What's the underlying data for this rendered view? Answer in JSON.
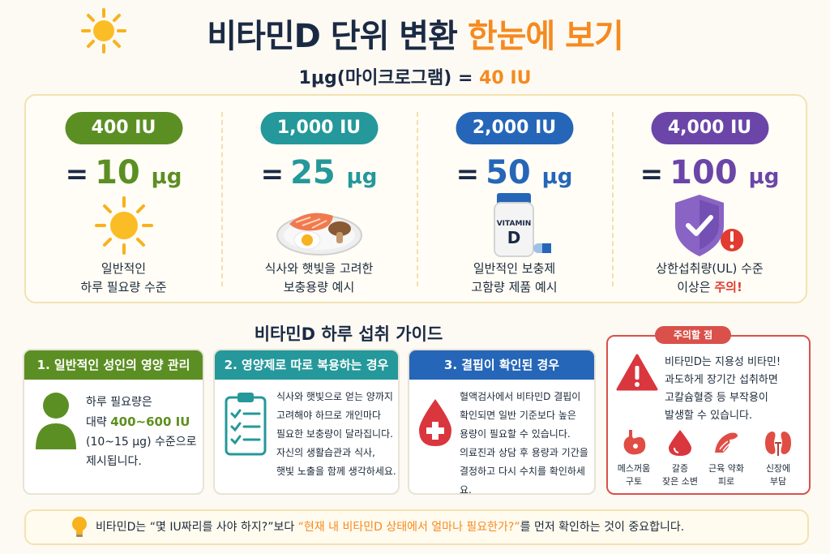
{
  "header": {
    "title_main": "비타민D 단위 변환",
    "title_accent": "한눈에 보기",
    "subtitle_main": "1μg(마이크로그램) =",
    "subtitle_accent": "40 IU"
  },
  "conversions": [
    {
      "iu": "400 IU",
      "eq": "=",
      "num": "10",
      "unit": "μg",
      "desc1": "일반적인",
      "desc2": "하루 필요량 수준",
      "desc2_warn": "",
      "color": "#5c8f23",
      "icon": "sun-icon"
    },
    {
      "iu": "1,000 IU",
      "eq": "=",
      "num": "25",
      "unit": "μg",
      "desc1": "식사와 햇빛을 고려한",
      "desc2": "보충용량 예시",
      "desc2_warn": "",
      "color": "#24989a",
      "icon": "salmon-egg-plate-icon"
    },
    {
      "iu": "2,000 IU",
      "eq": "=",
      "num": "50",
      "unit": "μg",
      "desc1": "일반적인 보충제",
      "desc2": "고함량 제품 예시",
      "desc2_warn": "",
      "color": "#2566b8",
      "icon": "vitamin-bottle-icon"
    },
    {
      "iu": "4,000 IU",
      "eq": "=",
      "num": "100",
      "unit": "μg",
      "desc1": "상한섭취량(UL) 수준",
      "desc2": "이상은 ",
      "desc2_warn": "주의!",
      "color": "#6b45a8",
      "icon": "shield-check-icon"
    }
  ],
  "vitamin_label": {
    "top": "VITAMIN",
    "bottom": "D"
  },
  "guide": {
    "title": "비타민D 하루 섭취 가이드",
    "cards": [
      {
        "header": "1. 일반적인 성인의 영양 관리",
        "color": "#5c8f23",
        "line1": "하루 필요량은",
        "line2_pre": "대략 ",
        "line2_hl": "400~600 IU",
        "line3": "(10~15 μg) 수준으로",
        "line4": "제시됩니다."
      },
      {
        "header": "2. 영양제로 따로 복용하는 경우",
        "color": "#24989a",
        "lines": [
          "식사와 햇빛으로 얻는 양까지",
          "고려해야 하므로 개인마다",
          "필요한 보충량이 달라집니다.",
          "자신의 생활습관과 식사,",
          "햇빛 노출을 함께 생각하세요."
        ]
      },
      {
        "header": "3. 결핍이 확인된 경우",
        "color": "#2566b8",
        "lines": [
          "혈액검사에서 비타민D 결핍이",
          "확인되면 일반 기준보다 높은",
          "용량이 필요할 수 있습니다.",
          "의료진과 상담 후 용량과 기간을",
          "결정하고 다시 수치를 확인하세요."
        ]
      }
    ]
  },
  "caution": {
    "badge": "주의할 점",
    "lines": [
      "비타민D는 지용성 비타민!",
      "과도하게 장기간 섭취하면",
      "고칼슘혈증 등 부작용이",
      "발생할 수 있습니다."
    ],
    "symptoms": [
      {
        "l1": "메스꺼움",
        "l2": "구토",
        "icon": "stomach-icon"
      },
      {
        "l1": "갈증",
        "l2": "잦은 소변",
        "icon": "water-drop-icon"
      },
      {
        "l1": "근육 약화",
        "l2": "피로",
        "icon": "muscle-icon"
      },
      {
        "l1": "신장에",
        "l2": "부담",
        "icon": "kidney-icon"
      }
    ]
  },
  "footer": {
    "pre": "비타민D는 “몇 IU짜리를 사야 하지?”보다 ",
    "accent": "“현재 내 비타민D 상태에서 얼마나 필요한가?”",
    "post": "를 먼저 확인하는 것이 중요합니다."
  }
}
